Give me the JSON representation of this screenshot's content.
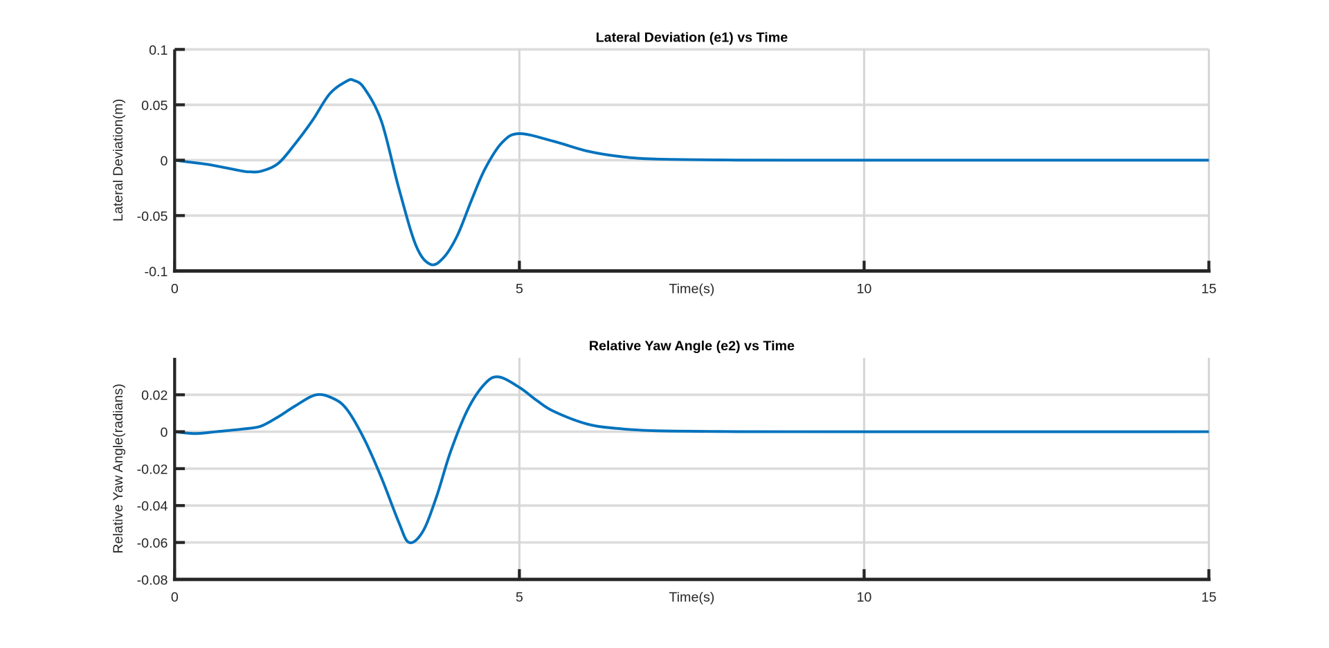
{
  "chart_data": [
    {
      "type": "line",
      "title": "Lateral Deviation (e1) vs Time",
      "xlabel": "Time(s)",
      "ylabel": "Lateral Deviation(m)",
      "xlim": [
        0,
        15
      ],
      "ylim": [
        -0.1,
        0.1
      ],
      "xticks": [
        0,
        5,
        10,
        15
      ],
      "xtick_labels": [
        "0",
        "5",
        "10",
        "15"
      ],
      "yticks": [
        -0.1,
        -0.05,
        0,
        0.05,
        0.1
      ],
      "ytick_labels": [
        "-0.1",
        "-0.05",
        "0",
        "0.05",
        "0.1"
      ],
      "grid": true,
      "color": "#0072BD",
      "series": [
        {
          "name": "e1",
          "x": [
            0,
            0.25,
            0.5,
            0.75,
            1.0,
            1.1,
            1.25,
            1.5,
            1.75,
            2.0,
            2.25,
            2.5,
            2.6,
            2.75,
            3.0,
            3.25,
            3.5,
            3.71,
            3.9,
            4.1,
            4.3,
            4.5,
            4.75,
            5.0,
            5.5,
            6.0,
            6.5,
            7.0,
            8.0,
            9.0,
            15.0
          ],
          "y": [
            0,
            -0.002,
            -0.004,
            -0.007,
            -0.01,
            -0.0105,
            -0.01,
            -0.003,
            0.015,
            0.036,
            0.06,
            0.0715,
            0.072,
            0.065,
            0.035,
            -0.025,
            -0.077,
            -0.094,
            -0.088,
            -0.068,
            -0.037,
            -0.008,
            0.016,
            0.024,
            0.017,
            0.008,
            0.003,
            0.001,
            0.0002,
            0,
            0
          ]
        }
      ]
    },
    {
      "type": "line",
      "title": "Relative Yaw Angle (e2) vs Time",
      "xlabel": "Time(s)",
      "ylabel": "Relative Yaw Angle(radians)",
      "xlim": [
        0,
        15
      ],
      "ylim": [
        -0.08,
        0.04
      ],
      "xticks": [
        0,
        5,
        10,
        15
      ],
      "xtick_labels": [
        "0",
        "5",
        "10",
        "15"
      ],
      "yticks": [
        -0.08,
        -0.06,
        -0.04,
        -0.02,
        0,
        0.02
      ],
      "ytick_labels": [
        "-0.08",
        "-0.06",
        "-0.04",
        "-0.02",
        "0",
        "0.02"
      ],
      "grid": true,
      "color": "#0072BD",
      "series": [
        {
          "name": "e2",
          "x": [
            0,
            0.3,
            0.6,
            1.0,
            1.25,
            1.5,
            1.75,
            2.05,
            2.3,
            2.5,
            2.75,
            3.0,
            3.25,
            3.4,
            3.6,
            3.8,
            4.0,
            4.25,
            4.5,
            4.7,
            5.0,
            5.25,
            5.5,
            6.0,
            6.5,
            7.0,
            8.0,
            9.0,
            15.0
          ],
          "y": [
            0,
            -0.001,
            0,
            0.0015,
            0.003,
            0.008,
            0.014,
            0.02,
            0.018,
            0.012,
            -0.004,
            -0.025,
            -0.049,
            -0.06,
            -0.054,
            -0.035,
            -0.011,
            0.012,
            0.026,
            0.0297,
            0.024,
            0.017,
            0.011,
            0.004,
            0.0015,
            0.0005,
            0.0001,
            0,
            0
          ]
        }
      ]
    }
  ]
}
